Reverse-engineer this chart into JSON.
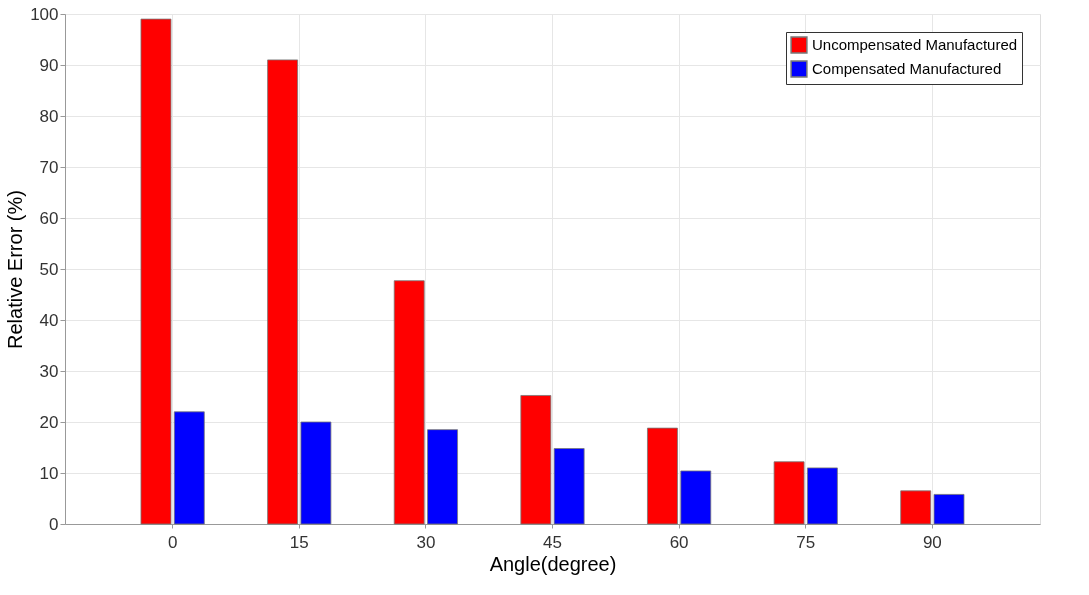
{
  "chart_data": {
    "type": "bar",
    "xlabel": "Angle(degree)",
    "ylabel": "Relative Error (%)",
    "categories": [
      "0",
      "15",
      "30",
      "45",
      "60",
      "75",
      "90"
    ],
    "series": [
      {
        "name": "Uncompensated Manufactured",
        "color": "#ff0000",
        "values": [
          99,
          91,
          47.7,
          25.2,
          18.8,
          12.2,
          6.5
        ]
      },
      {
        "name": "Compensated Manufactured",
        "color": "#0000ff",
        "values": [
          22,
          20,
          18.5,
          14.8,
          10.4,
          11,
          5.8
        ]
      }
    ],
    "ylim": [
      0,
      100
    ],
    "yticks": [
      0,
      10,
      20,
      30,
      40,
      50,
      60,
      70,
      80,
      90,
      100
    ],
    "grid": true,
    "legend": "top right"
  }
}
